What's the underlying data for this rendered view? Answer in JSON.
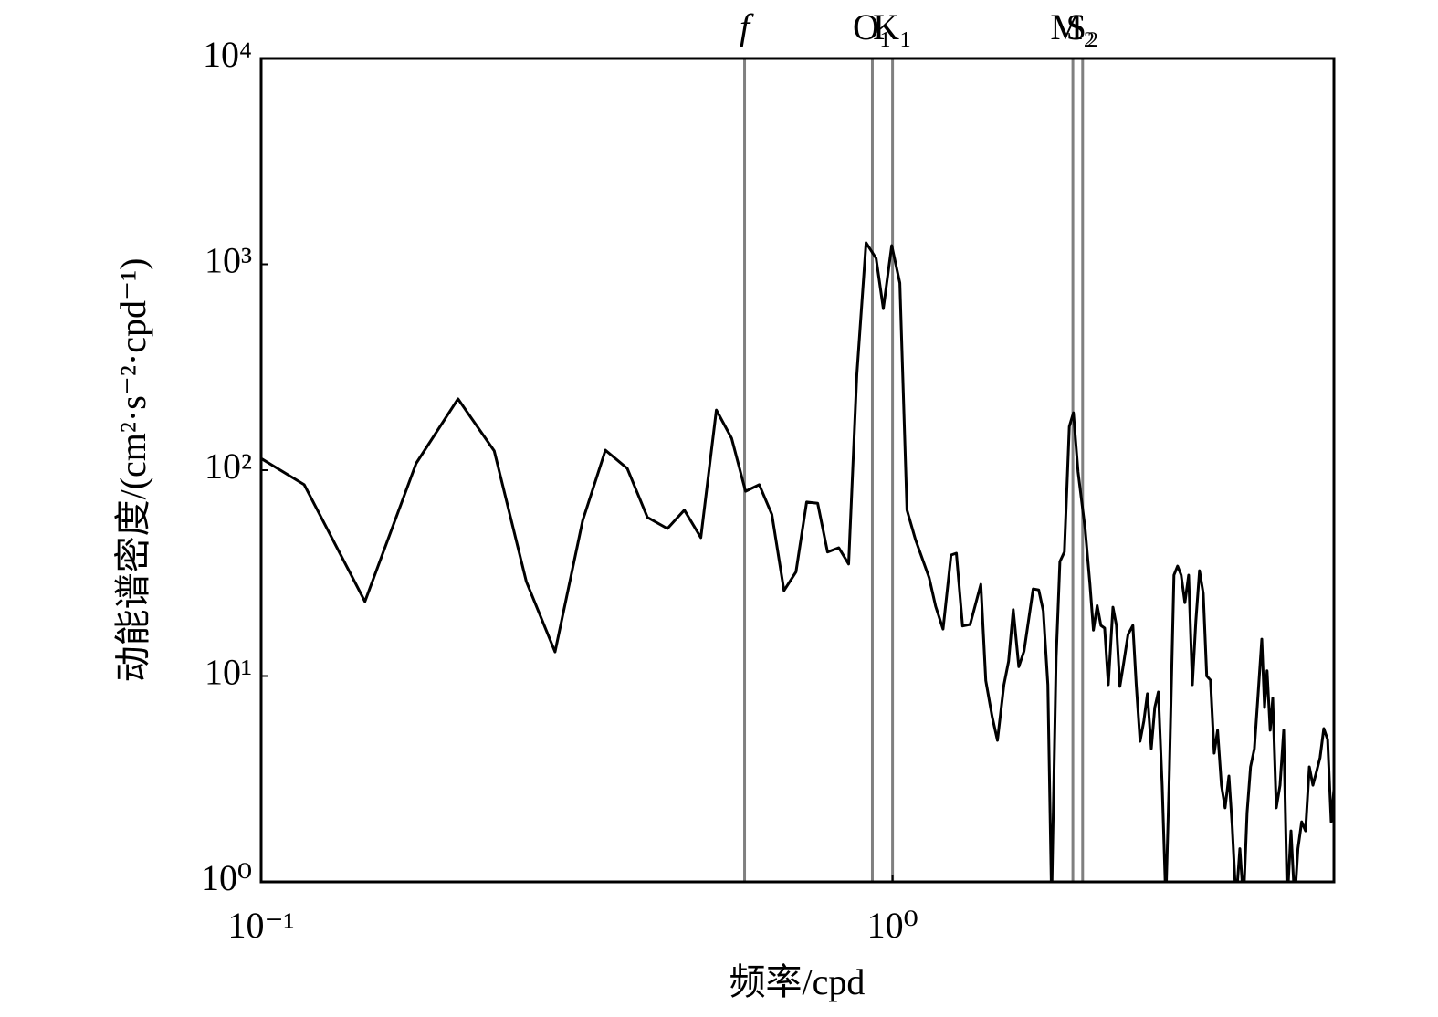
{
  "chart_data": {
    "type": "line",
    "xlabel": "频率/cpd",
    "ylabel": "动能谱密度/(cm²·s⁻²·cpd⁻¹)",
    "log_x": true,
    "log_y": true,
    "color": "#000000",
    "line_color": "#808080",
    "xlim": [
      0.1,
      5
    ],
    "ylim": [
      1,
      10000
    ],
    "xticks": [
      {
        "value": 0.1,
        "label": "10⁻¹"
      },
      {
        "value": 1,
        "label": "10⁰"
      }
    ],
    "yticks": [
      {
        "value": 1,
        "label": "10⁰"
      },
      {
        "value": 10,
        "label": "10¹"
      },
      {
        "value": 100,
        "label": "10²"
      },
      {
        "value": 1000,
        "label": "10³"
      },
      {
        "value": 10000,
        "label": "10⁴"
      }
    ],
    "lines": [
      {
        "label": "f",
        "x": 0.583,
        "style": "italic"
      },
      {
        "label": "O₁",
        "x": 0.929
      },
      {
        "label": "K₁",
        "x": 1.0
      },
      {
        "label": "M₂",
        "x": 1.93
      },
      {
        "label": "S₂",
        "x": 2.0
      }
    ],
    "x": [
      0.1,
      0.117,
      0.146,
      0.176,
      0.205,
      0.234,
      0.263,
      0.292,
      0.323,
      0.351,
      0.38,
      0.409,
      0.44,
      0.468,
      0.497,
      0.526,
      0.556,
      0.585,
      0.615,
      0.644,
      0.673,
      0.703,
      0.731,
      0.761,
      0.789,
      0.822,
      0.852,
      0.878,
      0.908,
      0.942,
      0.967,
      0.997,
      1.027,
      1.054,
      1.087,
      1.143,
      1.17,
      1.202,
      1.238,
      1.262,
      1.291,
      1.327,
      1.38,
      1.405,
      1.438,
      1.466,
      1.501,
      1.527,
      1.553,
      1.585,
      1.615,
      1.67,
      1.704,
      1.733,
      1.762,
      1.786,
      1.816,
      1.841,
      1.871,
      1.905,
      1.934,
      1.967,
      2.019,
      2.054,
      2.08,
      2.109,
      2.138,
      2.167,
      2.196,
      2.234,
      2.262,
      2.291,
      2.321,
      2.36,
      2.402,
      2.432,
      2.466,
      2.5,
      2.533,
      2.569,
      2.602,
      2.636,
      2.673,
      2.709,
      2.743,
      2.79,
      2.828,
      2.865,
      2.904,
      2.944,
      2.984,
      3.022,
      3.063,
      3.105,
      3.145,
      3.188,
      3.232,
      3.272,
      3.318,
      3.362,
      3.409,
      3.451,
      3.499,
      3.548,
      3.596,
      3.643,
      3.69,
      3.741,
      3.793,
      3.844,
      3.882,
      3.919,
      3.963,
      4.0,
      4.053,
      4.108,
      4.163,
      4.218,
      4.276,
      4.333,
      4.385,
      4.446,
      4.508,
      4.571,
      4.632,
      4.694,
      4.753,
      4.819,
      4.887,
      4.951,
      5.0
    ],
    "values": [
      114,
      85,
      23,
      108,
      222,
      124,
      28.8,
      13.1,
      57,
      125,
      102,
      59,
      52,
      64,
      47,
      196,
      143,
      79,
      85,
      61,
      26,
      32,
      70,
      69,
      40,
      42,
      35,
      292,
      1272,
      1069,
      609,
      1233,
      811,
      64,
      46,
      30,
      21.8,
      16.9,
      38.7,
      39.5,
      17.5,
      17.8,
      27.9,
      9.5,
      6.35,
      4.87,
      9.08,
      11.8,
      21,
      11.1,
      13.2,
      26.5,
      26.2,
      20.7,
      9.08,
      0.8,
      12.3,
      36,
      40,
      163,
      190,
      98,
      51.5,
      27.9,
      16.7,
      22,
      17.6,
      17.1,
      9.08,
      21.6,
      17.6,
      8.9,
      11.4,
      15.9,
      17.6,
      9.08,
      4.82,
      6.03,
      8.2,
      4.44,
      7.03,
      8.36,
      2.95,
      0.8,
      3.27,
      30.9,
      34.2,
      30.9,
      22.7,
      30.9,
      9.08,
      18.5,
      32.5,
      25.2,
      10,
      9.55,
      4.22,
      5.45,
      2.95,
      2.29,
      3.27,
      1.87,
      0.8,
      1.45,
      0.8,
      2.17,
      3.62,
      4.44,
      8.2,
      15.1,
      7.03,
      10.6,
      5.45,
      7.8,
      2.29,
      2.95,
      5.45,
      0.8,
      1.77,
      0.8,
      1.45,
      1.96,
      1.77,
      3.62,
      2.95,
      3.44,
      4.01,
      5.56,
      4.92,
      1.96,
      2.81
    ]
  }
}
